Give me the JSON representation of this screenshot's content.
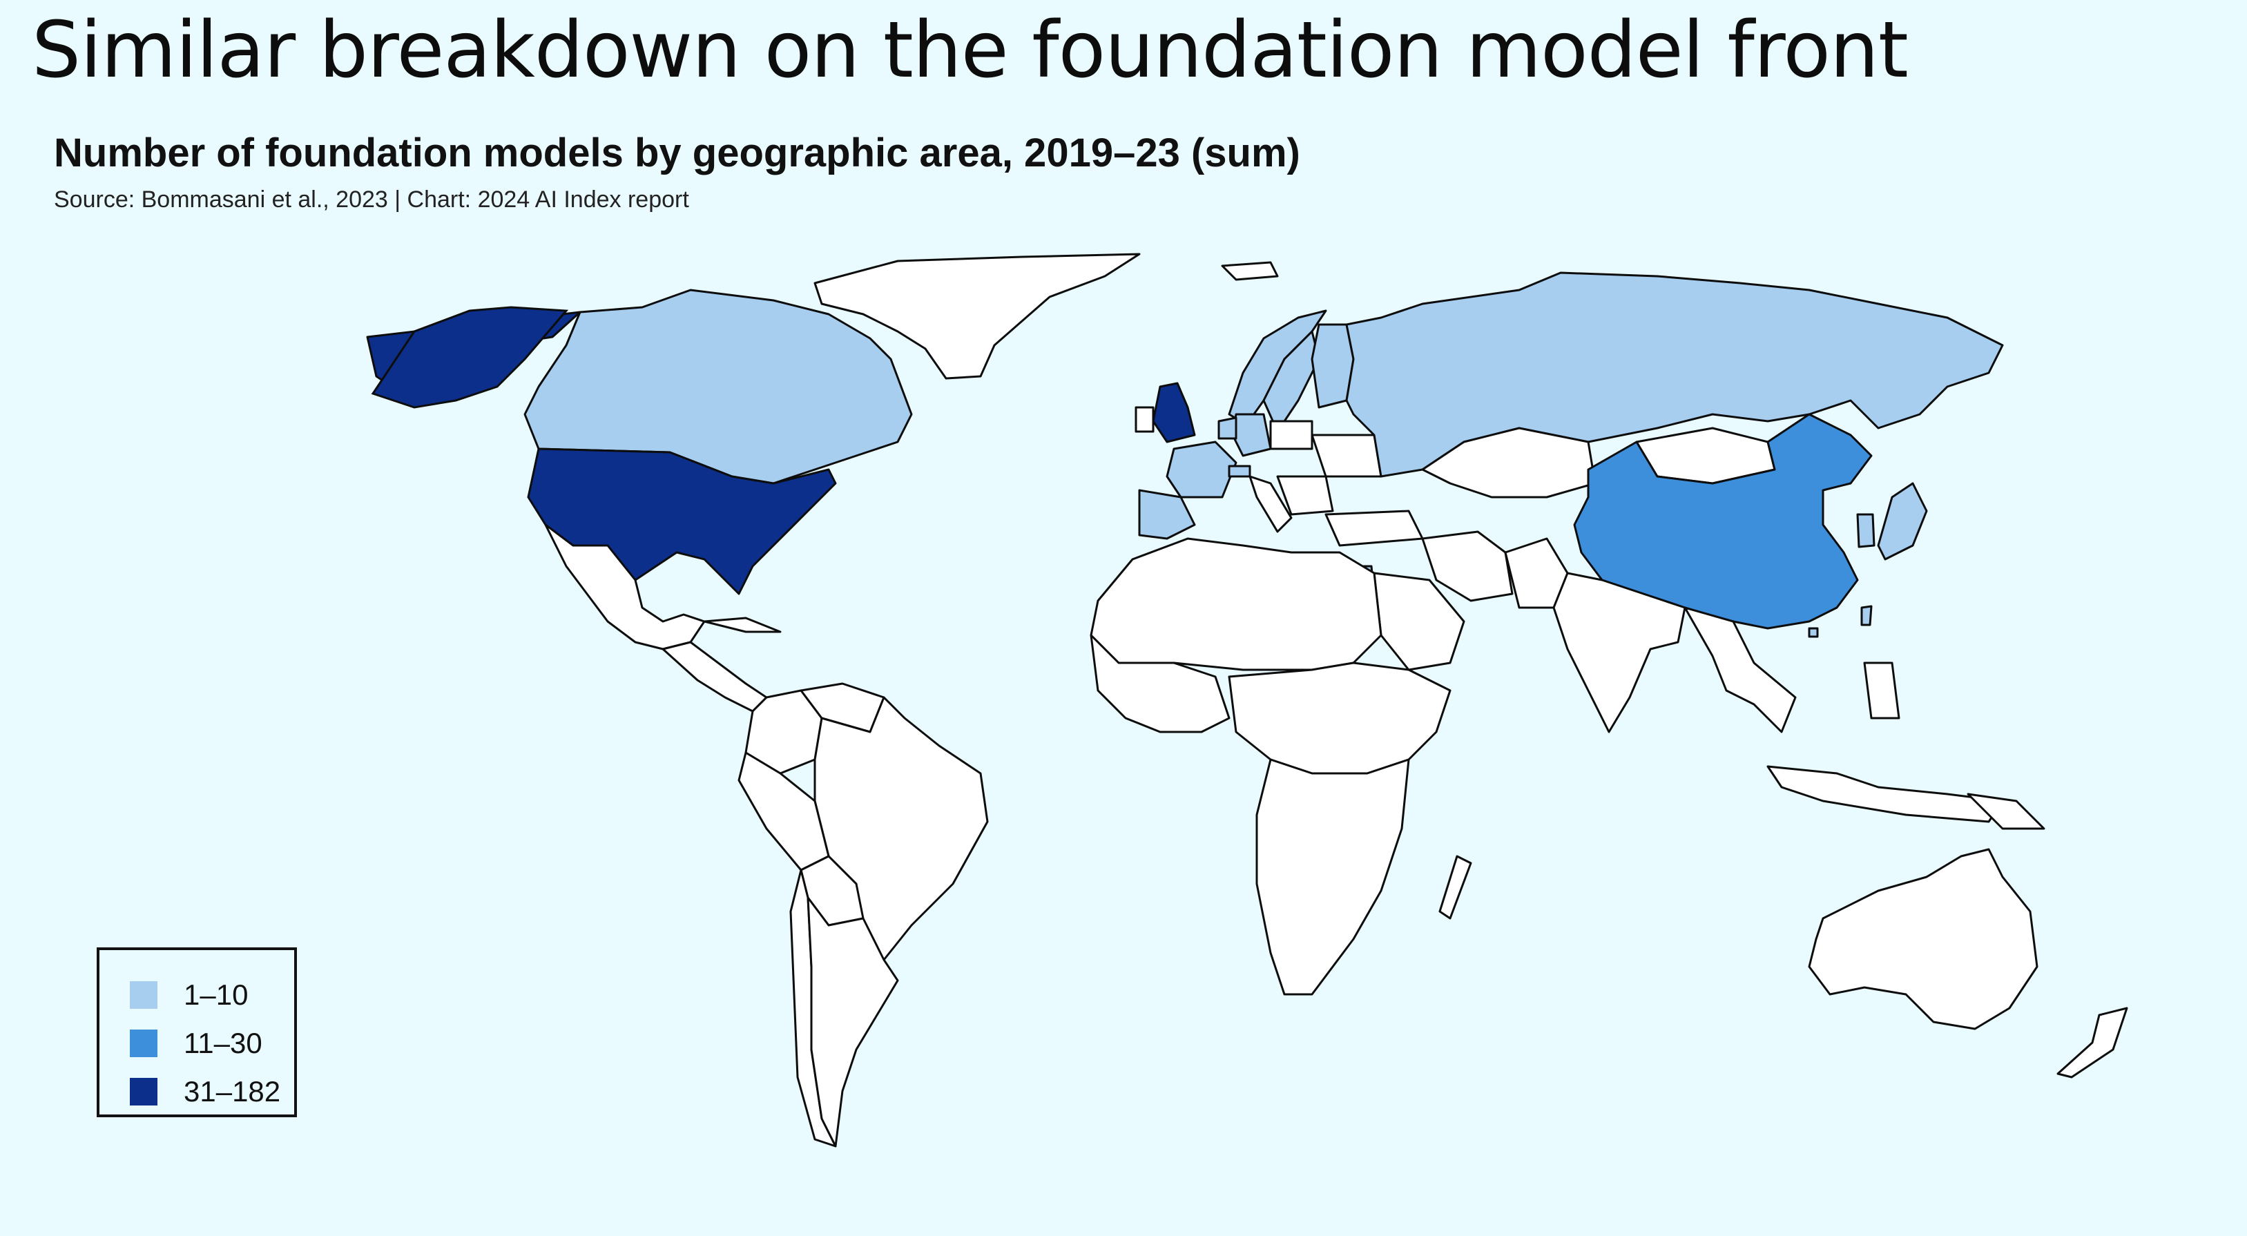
{
  "slide_title": "Similar breakdown on the foundation model front",
  "chart_data": {
    "type": "choropleth",
    "title": "Number of foundation models by geographic area, 2019–23 (sum)",
    "source": "Source: Bommasani et al., 2023 | Chart: 2024 AI Index report",
    "legend_placement": "bottom-left",
    "bins": [
      {
        "label": "1–10",
        "color": "#a7cdef"
      },
      {
        "label": "11–30",
        "color": "#3d8fdc"
      },
      {
        "label": "31–182",
        "color": "#0c2f8c"
      }
    ],
    "no_data_color": "#ffffff",
    "border_color": "#0d0d0d",
    "regions": [
      {
        "name": "United States",
        "bin": "31–182"
      },
      {
        "name": "United Kingdom",
        "bin": "31–182"
      },
      {
        "name": "China",
        "bin": "11–30"
      },
      {
        "name": "Canada",
        "bin": "1–10"
      },
      {
        "name": "Russia",
        "bin": "1–10"
      },
      {
        "name": "France",
        "bin": "1–10"
      },
      {
        "name": "Spain",
        "bin": "1–10"
      },
      {
        "name": "Germany",
        "bin": "1–10"
      },
      {
        "name": "Netherlands",
        "bin": "1–10"
      },
      {
        "name": "Sweden",
        "bin": "1–10"
      },
      {
        "name": "Finland",
        "bin": "1–10"
      },
      {
        "name": "Norway",
        "bin": "1–10"
      },
      {
        "name": "Switzerland",
        "bin": "1–10"
      },
      {
        "name": "Israel",
        "bin": "1–10"
      },
      {
        "name": "South Korea",
        "bin": "1–10"
      },
      {
        "name": "Japan",
        "bin": "1–10"
      },
      {
        "name": "Taiwan",
        "bin": "1–10"
      },
      {
        "name": "Hong Kong",
        "bin": "1–10"
      },
      {
        "name": "Greenland",
        "bin": "no data"
      },
      {
        "name": "India",
        "bin": "no data"
      },
      {
        "name": "Brazil",
        "bin": "no data"
      },
      {
        "name": "Australia",
        "bin": "no data"
      }
    ]
  }
}
